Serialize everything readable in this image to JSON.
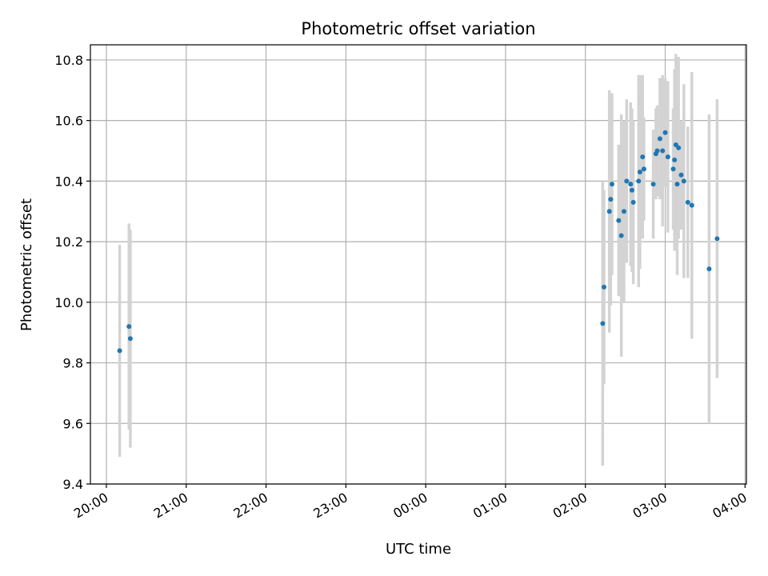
{
  "chart_data": {
    "type": "scatter",
    "title": "Photometric offset variation",
    "xlabel": "UTC time",
    "ylabel": "Photometric offset",
    "x_axis_kind": "time",
    "x_tick_labels": [
      "20:00",
      "21:00",
      "22:00",
      "23:00",
      "00:00",
      "01:00",
      "02:00",
      "03:00",
      "04:00"
    ],
    "xlim": [
      "19:48",
      "04:01"
    ],
    "ylim": [
      9.4,
      10.85
    ],
    "y_ticks": [
      9.4,
      9.6,
      9.8,
      10.0,
      10.2,
      10.4,
      10.6,
      10.8
    ],
    "grid": true,
    "colors": {
      "marker": "#1f77b4",
      "errorbar": "#d3d3d3",
      "grid": "#b0b0b0"
    },
    "series": [
      {
        "points": [
          {
            "x": "20:10",
            "y": 9.84,
            "err": 0.35
          },
          {
            "x": "20:17",
            "y": 9.92,
            "err": 0.34
          },
          {
            "x": "20:18",
            "y": 9.88,
            "err": 0.36
          },
          {
            "x": "02:13",
            "y": 9.93,
            "err": 0.47
          },
          {
            "x": "02:14",
            "y": 10.05,
            "err": 0.32
          },
          {
            "x": "02:18",
            "y": 10.3,
            "err": 0.4
          },
          {
            "x": "02:19",
            "y": 10.34,
            "err": 0.35
          },
          {
            "x": "02:20",
            "y": 10.39,
            "err": 0.3
          },
          {
            "x": "02:25",
            "y": 10.27,
            "err": 0.25
          },
          {
            "x": "02:27",
            "y": 10.22,
            "err": 0.4
          },
          {
            "x": "02:29",
            "y": 10.3,
            "err": 0.3
          },
          {
            "x": "02:31",
            "y": 10.4,
            "err": 0.27
          },
          {
            "x": "02:34",
            "y": 10.39,
            "err": 0.27
          },
          {
            "x": "02:35",
            "y": 10.37,
            "err": 0.27
          },
          {
            "x": "02:36",
            "y": 10.33,
            "err": 0.27
          },
          {
            "x": "02:40",
            "y": 10.4,
            "err": 0.35
          },
          {
            "x": "02:41",
            "y": 10.43,
            "err": 0.32
          },
          {
            "x": "02:43",
            "y": 10.48,
            "err": 0.27
          },
          {
            "x": "02:44",
            "y": 10.44,
            "err": 0.17
          },
          {
            "x": "02:51",
            "y": 10.39,
            "err": 0.18
          },
          {
            "x": "02:53",
            "y": 10.49,
            "err": 0.15
          },
          {
            "x": "02:54",
            "y": 10.5,
            "err": 0.15
          },
          {
            "x": "02:56",
            "y": 10.54,
            "err": 0.2
          },
          {
            "x": "02:58",
            "y": 10.5,
            "err": 0.25
          },
          {
            "x": "03:00",
            "y": 10.56,
            "err": 0.18
          },
          {
            "x": "03:02",
            "y": 10.48,
            "err": 0.25
          },
          {
            "x": "03:06",
            "y": 10.44,
            "err": 0.2
          },
          {
            "x": "03:07",
            "y": 10.47,
            "err": 0.3
          },
          {
            "x": "03:08",
            "y": 10.52,
            "err": 0.3
          },
          {
            "x": "03:09",
            "y": 10.39,
            "err": 0.3
          },
          {
            "x": "03:10",
            "y": 10.51,
            "err": 0.3
          },
          {
            "x": "03:12",
            "y": 10.42,
            "err": 0.18
          },
          {
            "x": "03:14",
            "y": 10.4,
            "err": 0.32
          },
          {
            "x": "03:17",
            "y": 10.33,
            "err": 0.25
          },
          {
            "x": "03:20",
            "y": 10.32,
            "err": 0.44
          },
          {
            "x": "03:33",
            "y": 10.11,
            "err": 0.51
          },
          {
            "x": "03:39",
            "y": 10.21,
            "err": 0.46
          }
        ]
      }
    ]
  }
}
